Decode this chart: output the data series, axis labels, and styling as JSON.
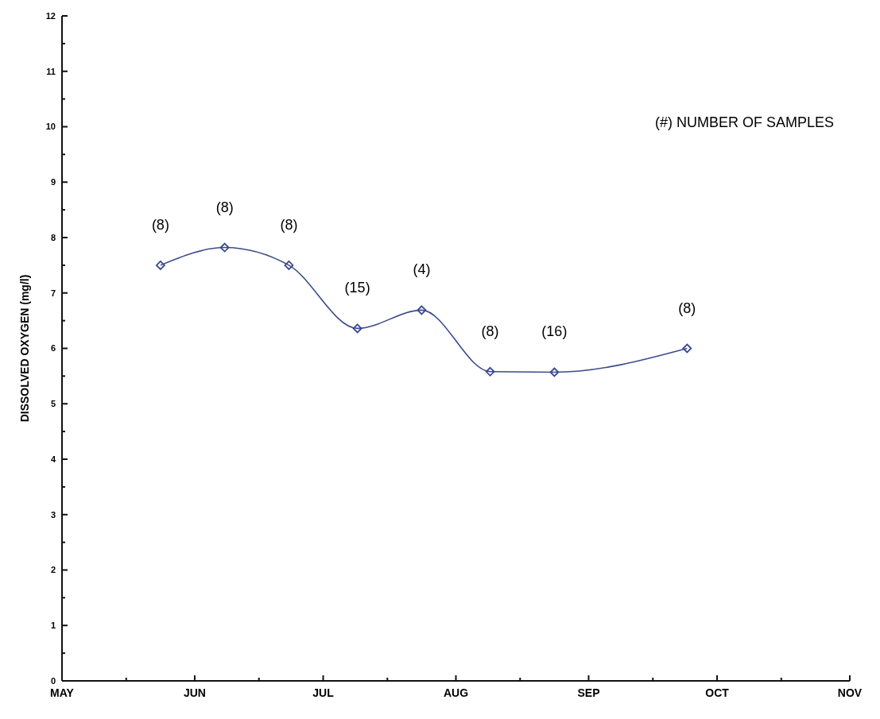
{
  "chart_data": {
    "type": "line",
    "ylabel": "DISSOLVED OXYGEN (mg/l)",
    "x": [
      "--05-24",
      "--06-08",
      "--06-23",
      "--07-09",
      "--07-24",
      "--08-09",
      "--08-24",
      "--09-24"
    ],
    "series": [
      {
        "color": "#3b4a8c",
        "values": [
          7.5,
          7.82,
          7.5,
          6.36,
          6.69,
          5.58,
          5.57,
          6.0
        ]
      }
    ],
    "marker": "diamond",
    "line_style": "solid",
    "xlim": [
      "--05-01",
      "--11-01"
    ],
    "xticks": [
      {
        "value": "--05-01",
        "label": "MAY"
      },
      {
        "value": "--05-16",
        "label": null
      },
      {
        "value": "--06-01",
        "label": "JUN"
      },
      {
        "value": "--06-16",
        "label": null
      },
      {
        "value": "--07-01",
        "label": "JUL"
      },
      {
        "value": "--07-16",
        "label": null
      },
      {
        "value": "--08-01",
        "label": "AUG"
      },
      {
        "value": "--08-16",
        "label": null
      },
      {
        "value": "--09-01",
        "label": "SEP"
      },
      {
        "value": "--09-16",
        "label": null
      },
      {
        "value": "--10-01",
        "label": "OCT"
      },
      {
        "value": "--10-16",
        "label": null
      },
      {
        "value": "--11-01",
        "label": "NOV"
      }
    ],
    "ylim": [
      0,
      12
    ],
    "yticks": [
      0,
      {
        "value": 0.5,
        "label": null
      },
      1,
      {
        "value": 1.5,
        "label": null
      },
      2,
      {
        "value": 2.5,
        "label": null
      },
      3,
      {
        "value": 3.5,
        "label": null
      },
      4,
      {
        "value": 4.5,
        "label": null
      },
      5,
      {
        "value": 5.5,
        "label": null
      },
      6,
      {
        "value": 6.5,
        "label": null
      },
      7,
      {
        "value": 7.5,
        "label": null
      },
      8,
      {
        "value": 8.5,
        "label": null
      },
      9,
      {
        "value": 9.5,
        "label": null
      },
      10,
      {
        "value": 10.5,
        "label": null
      },
      11,
      {
        "value": 11.5,
        "label": null
      },
      12
    ],
    "annotations": [
      {
        "text": "(8)",
        "x": "--05-24",
        "y": 7.5
      },
      {
        "text": "(8)",
        "x": "--06-08",
        "y": 7.82
      },
      {
        "text": "(8)",
        "x": "--06-23",
        "y": 7.5
      },
      {
        "text": "(15)",
        "x": "--07-09",
        "y": 6.36
      },
      {
        "text": "(4)",
        "x": "--07-24",
        "y": 6.69
      },
      {
        "text": "(8)",
        "x": "--08-09",
        "y": 5.58
      },
      {
        "text": "(16)",
        "x": "--08-24",
        "y": 5.57
      },
      {
        "text": "(8)",
        "x": "--09-24",
        "y": 6.0
      },
      "(#) NUMBER OF SAMPLES"
    ],
    "grid": false
  }
}
